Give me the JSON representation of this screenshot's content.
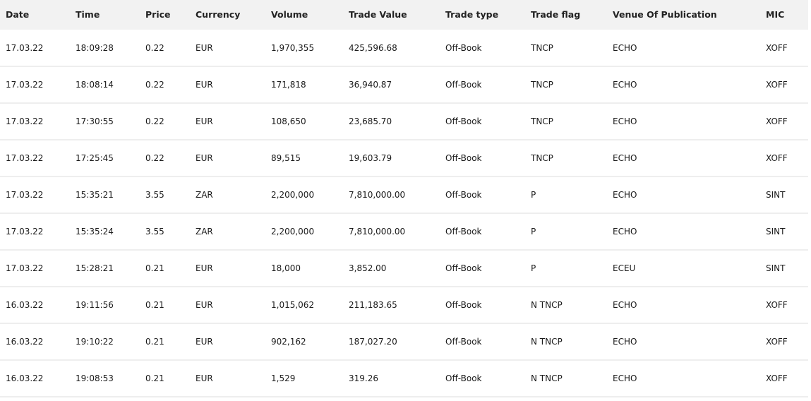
{
  "table": {
    "headers": [
      "Date",
      "Time",
      "Price",
      "Currency",
      "Volume",
      "Trade Value",
      "Trade type",
      "Trade flag",
      "Venue Of Publication",
      "MIC"
    ],
    "rows": [
      [
        "17.03.22",
        "18:09:28",
        "0.22",
        "EUR",
        "1,970,355",
        "425,596.68",
        "Off-Book",
        "TNCP",
        "ECHO",
        "XOFF"
      ],
      [
        "17.03.22",
        "18:08:14",
        "0.22",
        "EUR",
        "171,818",
        "36,940.87",
        "Off-Book",
        "TNCP",
        "ECHO",
        "XOFF"
      ],
      [
        "17.03.22",
        "17:30:55",
        "0.22",
        "EUR",
        "108,650",
        "23,685.70",
        "Off-Book",
        "TNCP",
        "ECHO",
        "XOFF"
      ],
      [
        "17.03.22",
        "17:25:45",
        "0.22",
        "EUR",
        "89,515",
        "19,603.79",
        "Off-Book",
        "TNCP",
        "ECHO",
        "XOFF"
      ],
      [
        "17.03.22",
        "15:35:21",
        "3.55",
        "ZAR",
        "2,200,000",
        "7,810,000.00",
        "Off-Book",
        "P",
        "ECHO",
        "SINT"
      ],
      [
        "17.03.22",
        "15:35:24",
        "3.55",
        "ZAR",
        "2,200,000",
        "7,810,000.00",
        "Off-Book",
        "P",
        "ECHO",
        "SINT"
      ],
      [
        "17.03.22",
        "15:28:21",
        "0.21",
        "EUR",
        "18,000",
        "3,852.00",
        "Off-Book",
        "P",
        "ECEU",
        "SINT"
      ],
      [
        "16.03.22",
        "19:11:56",
        "0.21",
        "EUR",
        "1,015,062",
        "211,183.65",
        "Off-Book",
        "N TNCP",
        "ECHO",
        "XOFF"
      ],
      [
        "16.03.22",
        "19:10:22",
        "0.21",
        "EUR",
        "902,162",
        "187,027.20",
        "Off-Book",
        "N TNCP",
        "ECHO",
        "XOFF"
      ],
      [
        "16.03.22",
        "19:08:53",
        "0.21",
        "EUR",
        "1,529",
        "319.26",
        "Off-Book",
        "N TNCP",
        "ECHO",
        "XOFF"
      ]
    ]
  },
  "colors": {
    "header_background": "#f2f2f2",
    "row_divider": "#eeeeee",
    "text": "#1a1a1a"
  }
}
